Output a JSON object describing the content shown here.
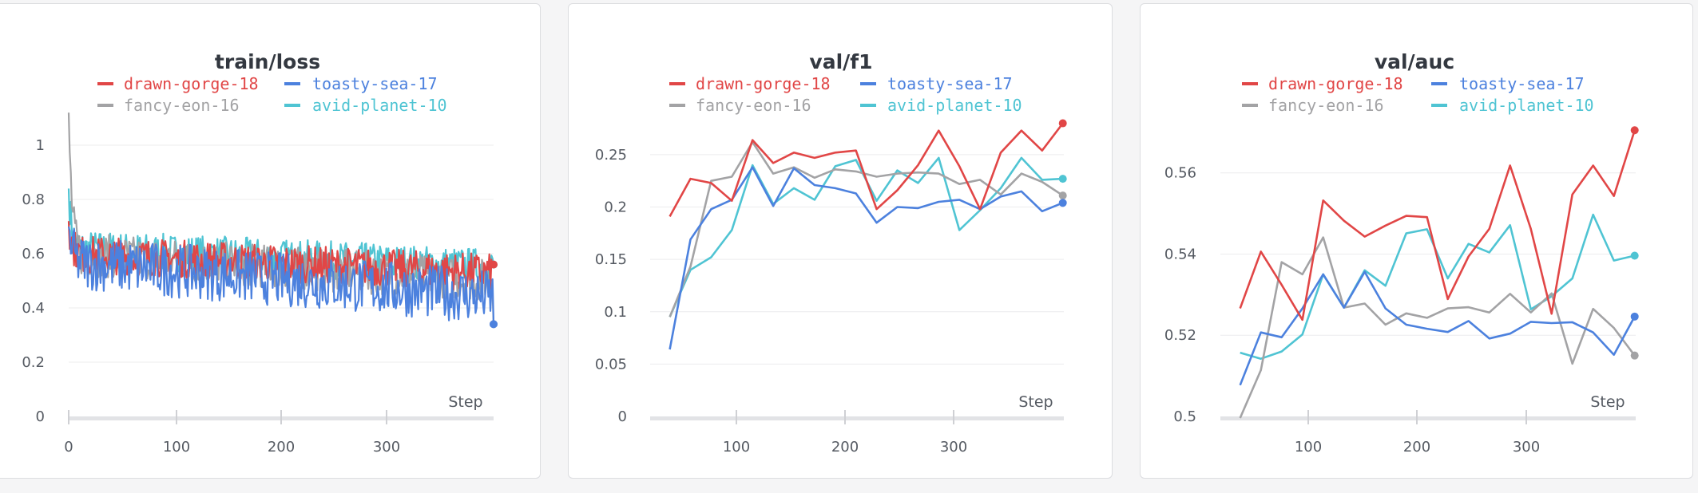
{
  "colors": {
    "drawn-gorge-18": "#e14646",
    "toasty-sea-17": "#4c81de",
    "fancy-eon-16": "#a3a3a5",
    "avid-planet-10": "#4fc4d3"
  },
  "chart_data": [
    {
      "type": "line",
      "title": "train/loss",
      "xlabel": "Step",
      "xlim": [
        0,
        400
      ],
      "ylim": [
        0,
        1.1
      ],
      "xticks": [
        "0",
        "100",
        "200",
        "300"
      ],
      "yticks": [
        "0",
        "0.2",
        "0.4",
        "0.6",
        "0.8",
        "1"
      ],
      "legend": [
        "drawn-gorge-18",
        "toasty-sea-17",
        "fancy-eon-16",
        "avid-planet-10"
      ],
      "noisy": true,
      "series": [
        {
          "name": "avid-planet-10",
          "start": 0.84,
          "mean_start": 0.62,
          "mean_end": 0.55,
          "noise": 0.07,
          "last": 0.56
        },
        {
          "name": "fancy-eon-16",
          "start": 1.12,
          "mean_start": 0.6,
          "mean_end": 0.5,
          "noise": 0.08,
          "last": 0.34
        },
        {
          "name": "drawn-gorge-18",
          "start": 0.72,
          "mean_start": 0.6,
          "mean_end": 0.53,
          "noise": 0.07,
          "last": 0.56
        },
        {
          "name": "toasty-sea-17",
          "start": 0.7,
          "mean_start": 0.57,
          "mean_end": 0.44,
          "noise": 0.1,
          "last": 0.34
        }
      ]
    },
    {
      "type": "line",
      "title": "val/f1",
      "xlabel": "Step",
      "xlim": [
        0,
        400
      ],
      "ylim": [
        0,
        0.285
      ],
      "xticks": [
        "100",
        "200",
        "300"
      ],
      "yticks": [
        "0",
        "0.05",
        "0.1",
        "0.15",
        "0.2",
        "0.25"
      ],
      "legend": [
        "drawn-gorge-18",
        "toasty-sea-17",
        "fancy-eon-16",
        "avid-planet-10"
      ],
      "x": [
        19,
        39,
        59,
        79,
        99,
        119,
        139,
        159,
        179,
        199,
        219,
        239,
        259,
        279,
        299,
        319,
        339,
        359,
        379,
        399
      ],
      "series": [
        {
          "name": "avid-planet-10",
          "values": [
            0.095,
            0.14,
            0.152,
            0.178,
            0.24,
            0.203,
            0.218,
            0.207,
            0.239,
            0.245,
            0.206,
            0.235,
            0.223,
            0.247,
            0.178,
            0.197,
            0.218,
            0.247,
            0.226,
            0.227
          ]
        },
        {
          "name": "fancy-eon-16",
          "values": [
            0.095,
            0.143,
            0.225,
            0.229,
            0.262,
            0.232,
            0.238,
            0.228,
            0.236,
            0.234,
            0.229,
            0.232,
            0.233,
            0.232,
            0.222,
            0.226,
            0.212,
            0.232,
            0.224,
            0.211
          ]
        },
        {
          "name": "toasty-sea-17",
          "values": [
            0.064,
            0.169,
            0.198,
            0.207,
            0.238,
            0.201,
            0.237,
            0.221,
            0.218,
            0.213,
            0.185,
            0.2,
            0.199,
            0.205,
            0.207,
            0.198,
            0.21,
            0.215,
            0.196,
            0.204
          ]
        },
        {
          "name": "drawn-gorge-18",
          "values": [
            0.191,
            0.227,
            0.223,
            0.206,
            0.264,
            0.242,
            0.252,
            0.247,
            0.252,
            0.254,
            0.198,
            0.216,
            0.24,
            0.273,
            0.239,
            0.198,
            0.252,
            0.273,
            0.254,
            0.28
          ]
        }
      ]
    },
    {
      "type": "line",
      "title": "val/auc",
      "xlabel": "Step",
      "xlim": [
        0,
        400
      ],
      "ylim": [
        0.5,
        0.5735
      ],
      "xticks": [
        "100",
        "200",
        "300"
      ],
      "yticks": [
        "0.5",
        "0.52",
        "0.54",
        "0.56"
      ],
      "legend": [
        "drawn-gorge-18",
        "toasty-sea-17",
        "fancy-eon-16",
        "avid-planet-10"
      ],
      "x": [
        19,
        39,
        59,
        79,
        99,
        119,
        139,
        159,
        179,
        199,
        219,
        239,
        259,
        279,
        299,
        319,
        339,
        359,
        379,
        399
      ],
      "series": [
        {
          "name": "avid-planet-10",
          "values": [
            0.5157,
            0.5142,
            0.516,
            0.5202,
            0.535,
            0.5268,
            0.536,
            0.5322,
            0.5451,
            0.5461,
            0.534,
            0.5425,
            0.5404,
            0.5471,
            0.5264,
            0.5296,
            0.534,
            0.5497,
            0.5384,
            0.5396
          ]
        },
        {
          "name": "fancy-eon-16",
          "values": [
            0.4996,
            0.5114,
            0.538,
            0.535,
            0.5441,
            0.5268,
            0.5278,
            0.5226,
            0.5254,
            0.5243,
            0.5266,
            0.5269,
            0.5256,
            0.5302,
            0.5256,
            0.5303,
            0.513,
            0.5265,
            0.5218,
            0.515
          ]
        },
        {
          "name": "toasty-sea-17",
          "values": [
            0.5077,
            0.5207,
            0.5195,
            0.5266,
            0.535,
            0.5268,
            0.5356,
            0.5266,
            0.5226,
            0.5216,
            0.5208,
            0.5235,
            0.5192,
            0.5204,
            0.5233,
            0.523,
            0.5232,
            0.5207,
            0.5152,
            0.5246
          ]
        },
        {
          "name": "drawn-gorge-18",
          "values": [
            0.5266,
            0.5406,
            0.5324,
            0.5238,
            0.5532,
            0.5482,
            0.5443,
            0.547,
            0.5494,
            0.5491,
            0.5289,
            0.5394,
            0.5462,
            0.5618,
            0.5462,
            0.5253,
            0.5547,
            0.5618,
            0.5543,
            0.5705
          ]
        }
      ]
    }
  ]
}
